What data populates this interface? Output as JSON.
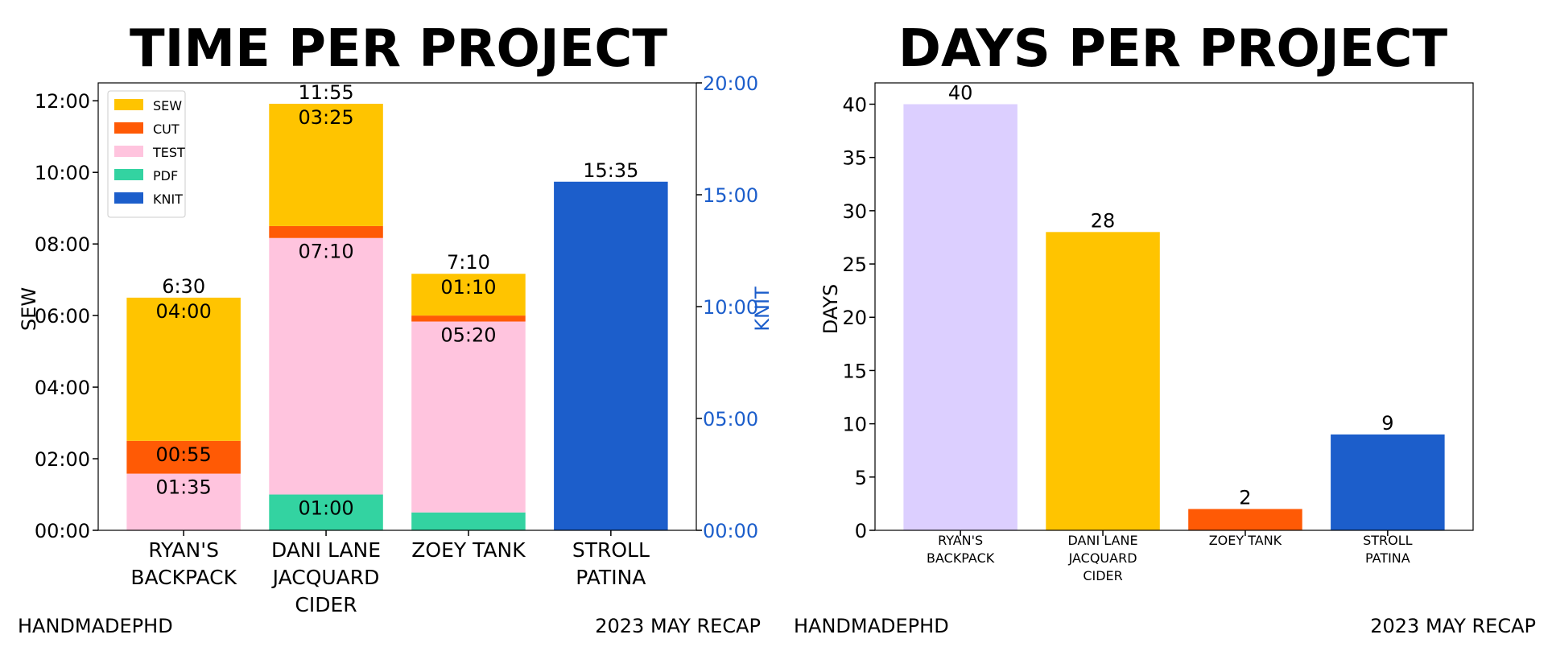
{
  "chart_data": [
    {
      "type": "bar",
      "title": "TIME PER PROJECT",
      "categories": [
        "RYAN'S\nBACKPACK",
        "DANI LANE\nJACQUARD\nCIDER",
        "ZOEY TANK",
        "STROLL\nPATINA"
      ],
      "stacked": true,
      "ylabel": "SEW",
      "ylim_minutes": [
        0,
        750
      ],
      "ytick_values": [
        0,
        120,
        240,
        360,
        480,
        600,
        720
      ],
      "ytick_labels": [
        "00:00",
        "02:00",
        "04:00",
        "06:00",
        "08:00",
        "10:00",
        "12:00"
      ],
      "y2label": "KNIT",
      "y2lim_minutes": [
        0,
        1200
      ],
      "y2tick_values": [
        0,
        300,
        600,
        900,
        1200
      ],
      "y2tick_labels": [
        "00:00",
        "05:00",
        "10:00",
        "15:00",
        "20:00"
      ],
      "y2_color": "#1c5ecb",
      "units": "minutes",
      "series": [
        {
          "name": "PDF",
          "color": "#33d3a1",
          "values": [
            0,
            60,
            30,
            0
          ],
          "labels": [
            "",
            "01:00",
            "",
            ""
          ]
        },
        {
          "name": "TEST",
          "color": "#ffc4de",
          "values": [
            95,
            430,
            320,
            0
          ],
          "labels": [
            "01:35",
            "07:10",
            "05:20",
            ""
          ]
        },
        {
          "name": "CUT",
          "color": "#ff5a05",
          "values": [
            55,
            20,
            10,
            0
          ],
          "labels": [
            "00:55",
            "",
            "",
            ""
          ]
        },
        {
          "name": "SEW",
          "color": "#ffc400",
          "values": [
            240,
            205,
            70,
            0
          ],
          "labels": [
            "04:00",
            "03:25",
            "01:10",
            ""
          ]
        },
        {
          "name": "KNIT",
          "color": "#1c5ecb",
          "axis": "right",
          "values": [
            0,
            0,
            0,
            935
          ],
          "labels": [
            "",
            "",
            "",
            ""
          ]
        }
      ],
      "totals": [
        "6:30",
        "11:55",
        "7:10",
        "15:35"
      ],
      "legend_order": [
        "SEW",
        "CUT",
        "TEST",
        "PDF",
        "KNIT"
      ],
      "legend": "top-left",
      "grid": false,
      "footer_left": "HANDMADEPHD",
      "footer_right": "2023 MAY RECAP"
    },
    {
      "type": "bar",
      "title": "DAYS PER PROJECT",
      "categories": [
        "RYAN'S\nBACKPACK",
        "DANI LANE\nJACQUARD\nCIDER",
        "ZOEY TANK",
        "STROLL\nPATINA"
      ],
      "values": [
        40,
        28,
        2,
        9
      ],
      "value_labels": [
        "40",
        "28",
        "2",
        "9"
      ],
      "colors": [
        "#dccfff",
        "#ffc400",
        "#ff5a05",
        "#1c5ecb"
      ],
      "ylabel": "DAYS",
      "ylim": [
        0,
        42
      ],
      "yticks": [
        0,
        5,
        10,
        15,
        20,
        25,
        30,
        35,
        40
      ],
      "grid": false,
      "footer_left": "HANDMADEPHD",
      "footer_right": "2023 MAY RECAP"
    }
  ]
}
